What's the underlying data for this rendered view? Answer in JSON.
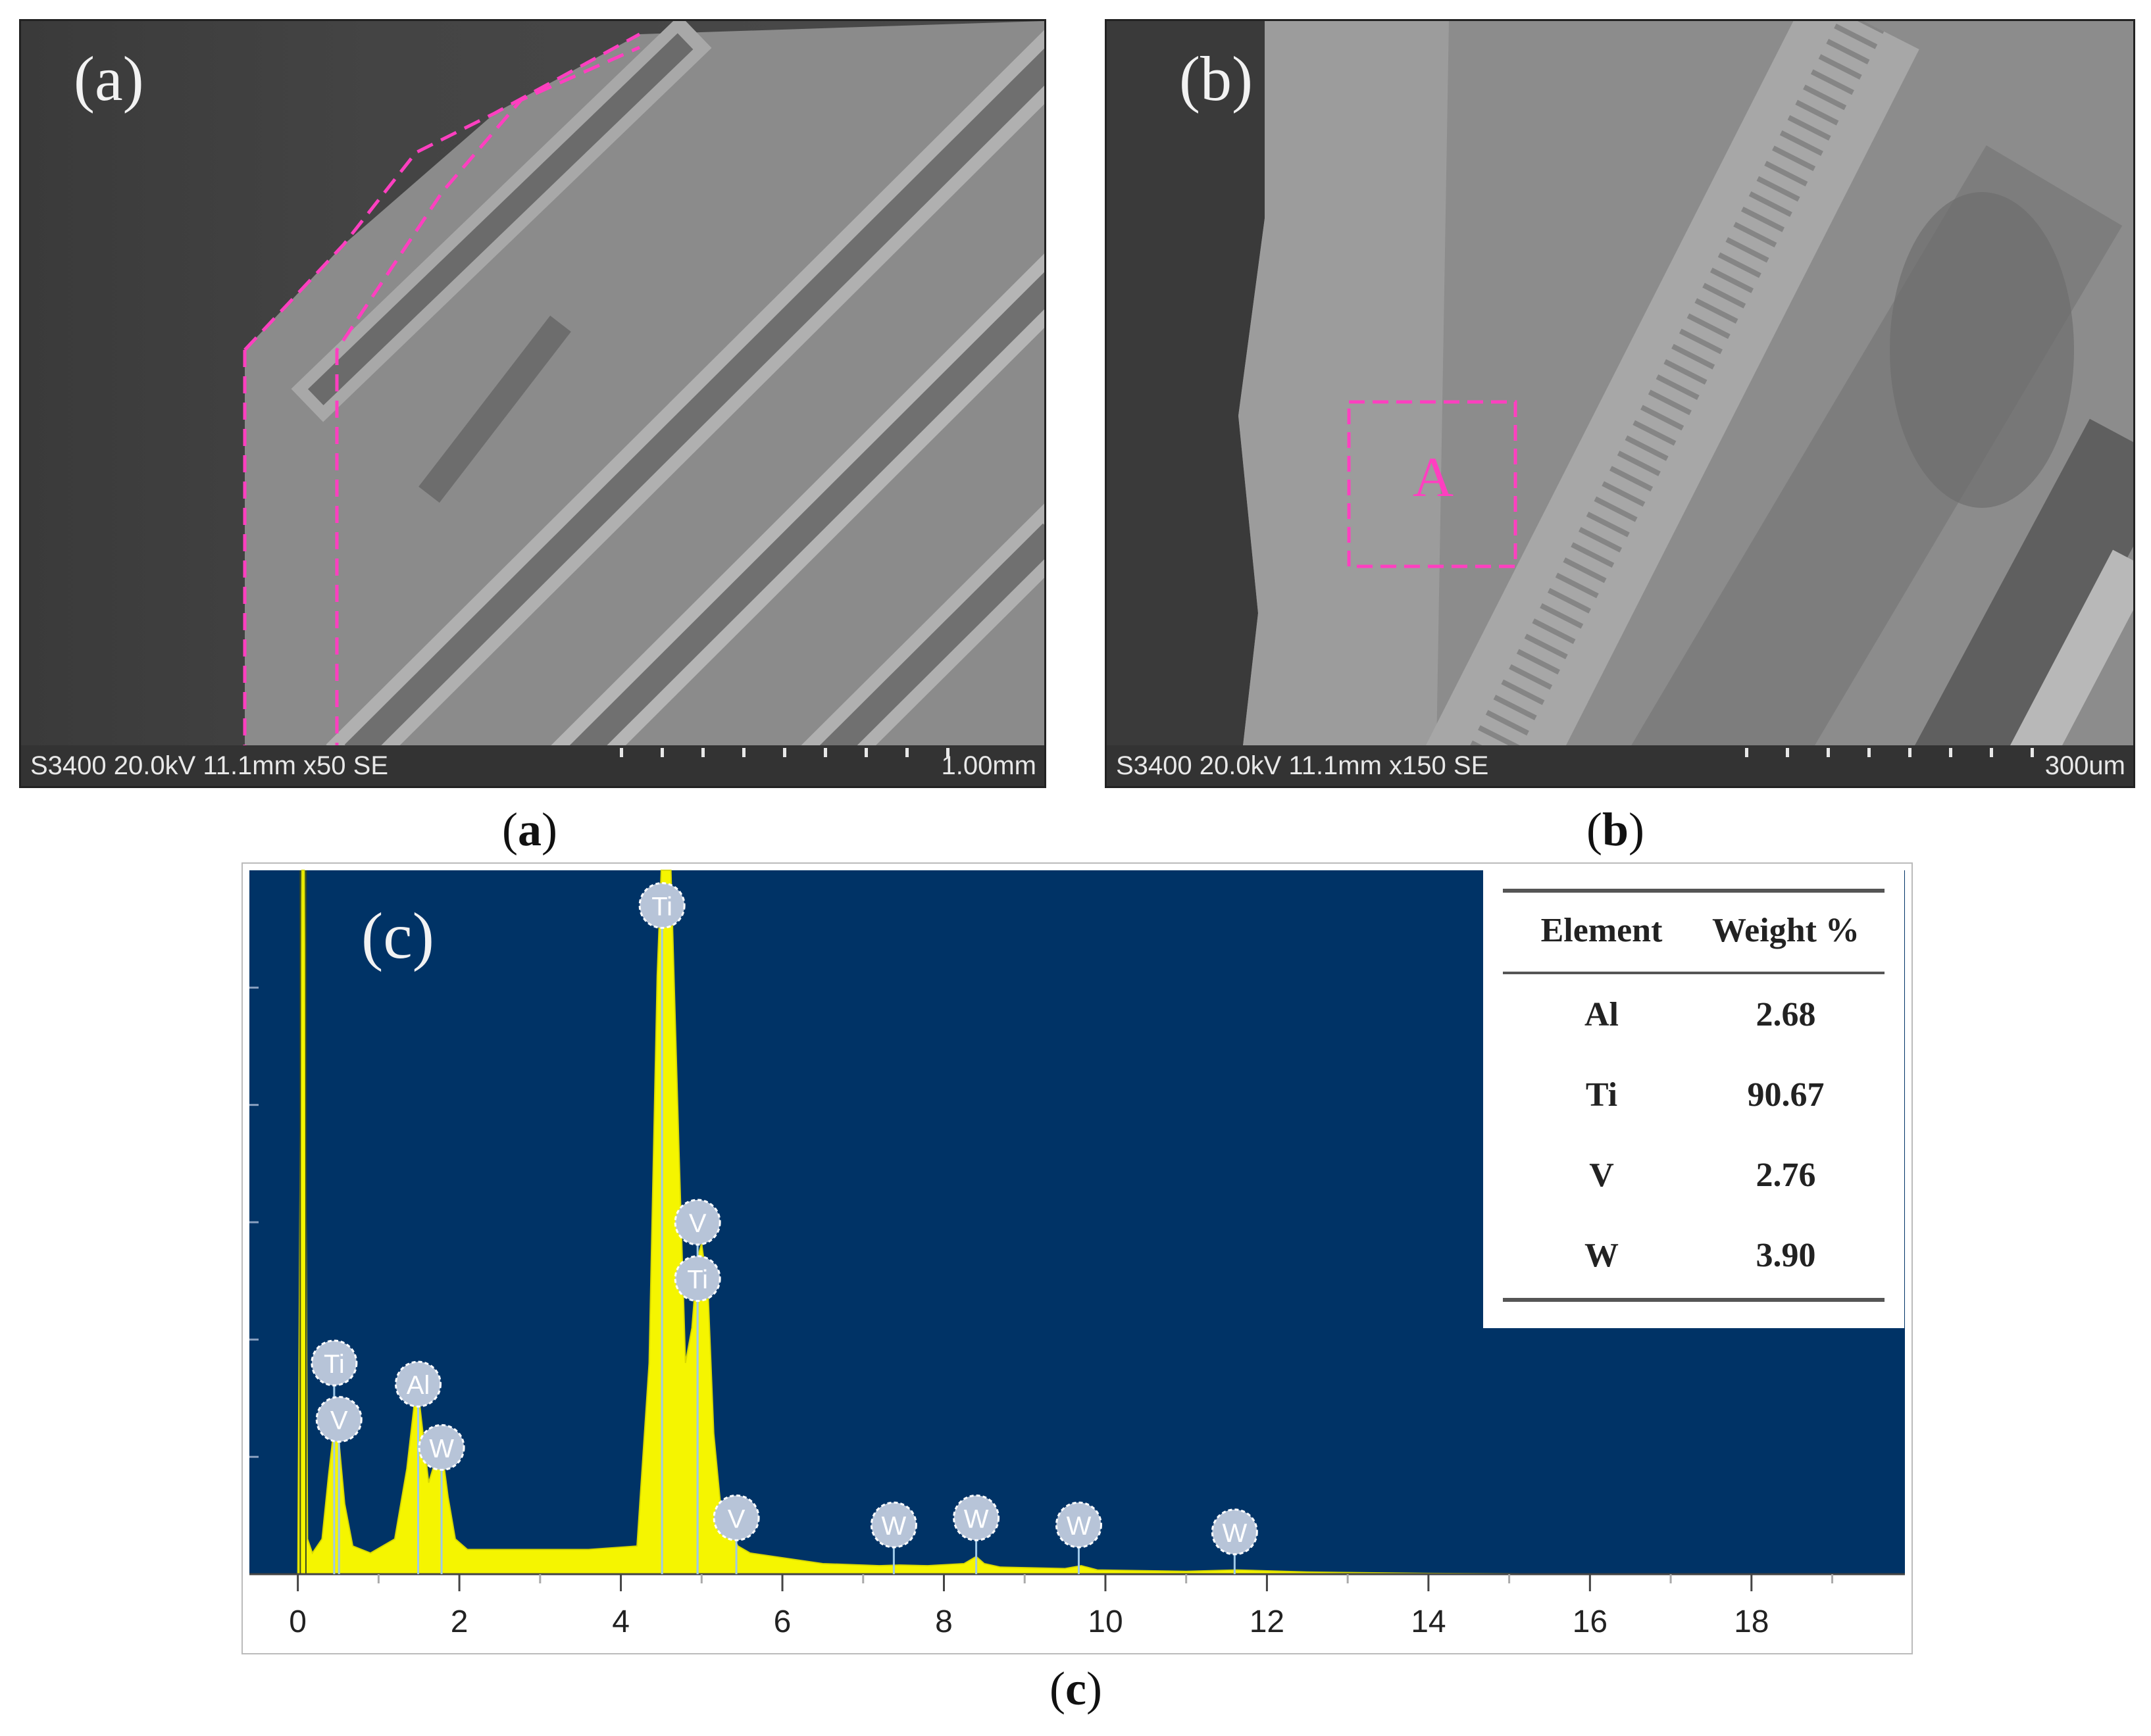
{
  "panel_a": {
    "label": "(a)",
    "meta": "S3400 20.0kV 11.1mm x50 SE",
    "scale": "1.00mm",
    "caption": "a"
  },
  "panel_b": {
    "label": "(b)",
    "meta": "S3400 20.0kV 11.1mm x150 SE",
    "scale": "300um",
    "region_label": "A",
    "caption": "b"
  },
  "panel_c": {
    "label": "(c)",
    "caption": "c"
  },
  "colors": {
    "spectrum_bg": "#003366",
    "spectrum_fill": "#f5f500",
    "marker": "#b7c4d8",
    "highlight": "#ff3fc0"
  },
  "chart_data": {
    "type": "area",
    "title": "",
    "xlabel": "",
    "ylabel": "",
    "xlim": [
      -0.6,
      19.9
    ],
    "ylim": [
      0,
      1
    ],
    "x_ticks": [
      0,
      2,
      4,
      6,
      8,
      10,
      12,
      14,
      16,
      18
    ],
    "x_tick_labels": [
      "0",
      "2",
      "4",
      "6",
      "8",
      "10",
      "12",
      "14",
      "16",
      "18"
    ],
    "grid": false,
    "x": [
      -0.6,
      0.0,
      0.05,
      0.08,
      0.12,
      0.18,
      0.3,
      0.38,
      0.45,
      0.5,
      0.58,
      0.68,
      0.9,
      1.2,
      1.35,
      1.45,
      1.49,
      1.55,
      1.62,
      1.7,
      1.78,
      1.86,
      1.95,
      2.1,
      2.8,
      3.6,
      4.2,
      4.35,
      4.45,
      4.5,
      4.55,
      4.62,
      4.72,
      4.8,
      4.88,
      4.95,
      5.0,
      5.08,
      5.15,
      5.25,
      5.45,
      5.6,
      6.5,
      7.2,
      7.45,
      7.8,
      8.25,
      8.4,
      8.5,
      8.7,
      9.5,
      9.7,
      9.9,
      11.0,
      11.62,
      12.5,
      14.0,
      16.0,
      19.9
    ],
    "y": [
      0,
      0,
      1,
      1,
      0.05,
      0.03,
      0.05,
      0.14,
      0.21,
      0.2,
      0.1,
      0.04,
      0.03,
      0.05,
      0.15,
      0.25,
      0.26,
      0.2,
      0.13,
      0.16,
      0.18,
      0.11,
      0.05,
      0.035,
      0.035,
      0.035,
      0.04,
      0.3,
      0.85,
      1,
      1,
      1,
      0.6,
      0.3,
      0.35,
      0.45,
      0.47,
      0.4,
      0.2,
      0.08,
      0.04,
      0.03,
      0.015,
      0.012,
      0.013,
      0.012,
      0.015,
      0.025,
      0.015,
      0.01,
      0.008,
      0.012,
      0.006,
      0.004,
      0.006,
      0.003,
      0.001,
      0,
      0
    ],
    "peak_markers": [
      {
        "label": "Ti",
        "x": 0.45,
        "level": 0.3
      },
      {
        "label": "V",
        "x": 0.51,
        "level": 0.22
      },
      {
        "label": "Al",
        "x": 1.49,
        "level": 0.27
      },
      {
        "label": "W",
        "x": 1.78,
        "level": 0.18
      },
      {
        "label": "Ti",
        "x": 4.51,
        "level": 0.95
      },
      {
        "label": "V",
        "x": 4.95,
        "level": 0.5
      },
      {
        "label": "Ti",
        "x": 4.95,
        "level": 0.42
      },
      {
        "label": "V",
        "x": 5.43,
        "level": 0.08
      },
      {
        "label": "W",
        "x": 7.38,
        "level": 0.07
      },
      {
        "label": "W",
        "x": 8.4,
        "level": 0.08
      },
      {
        "label": "W",
        "x": 9.67,
        "level": 0.07
      },
      {
        "label": "W",
        "x": 11.6,
        "level": 0.06
      }
    ],
    "composition_table": {
      "headers": [
        "Element",
        "Weight %"
      ],
      "rows": [
        {
          "element": "Al",
          "weight": "2.68"
        },
        {
          "element": "Ti",
          "weight": "90.67"
        },
        {
          "element": "V",
          "weight": "2.76"
        },
        {
          "element": "W",
          "weight": "3.90"
        }
      ]
    }
  }
}
